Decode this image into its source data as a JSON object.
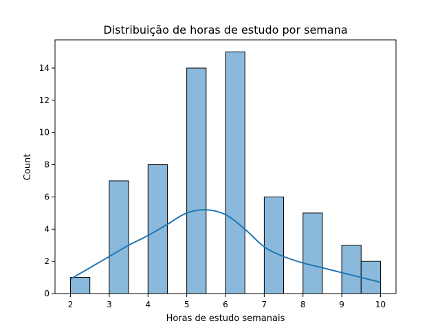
{
  "chart_data": {
    "type": "bar",
    "title": "Distribuição de horas de estudo por semana",
    "xlabel": "Horas de estudo semanais",
    "ylabel": "Count",
    "xlim": [
      1.6,
      10.4
    ],
    "ylim": [
      0,
      15.75
    ],
    "x_ticks": [
      2,
      3,
      4,
      5,
      6,
      7,
      8,
      9,
      10
    ],
    "y_ticks": [
      0,
      2,
      4,
      6,
      8,
      10,
      12,
      14
    ],
    "bins": [
      {
        "start": 2.0,
        "end": 2.5,
        "count": 1
      },
      {
        "start": 3.0,
        "end": 3.5,
        "count": 7
      },
      {
        "start": 4.0,
        "end": 4.5,
        "count": 8
      },
      {
        "start": 5.0,
        "end": 5.5,
        "count": 14
      },
      {
        "start": 6.0,
        "end": 6.5,
        "count": 15
      },
      {
        "start": 7.0,
        "end": 7.5,
        "count": 6
      },
      {
        "start": 8.0,
        "end": 8.5,
        "count": 5
      },
      {
        "start": 9.0,
        "end": 9.5,
        "count": 3
      },
      {
        "start": 9.5,
        "end": 10.0,
        "count": 2
      }
    ],
    "kde": {
      "x": [
        2.0,
        2.5,
        3.0,
        3.5,
        4.0,
        4.5,
        5.0,
        5.5,
        6.0,
        6.5,
        7.0,
        7.5,
        8.0,
        8.5,
        9.0,
        9.5,
        10.0
      ],
      "y": [
        0.9,
        1.6,
        2.3,
        3.0,
        3.6,
        4.3,
        5.0,
        5.2,
        4.9,
        4.0,
        2.9,
        2.3,
        1.9,
        1.6,
        1.3,
        1.0,
        0.7
      ]
    },
    "colors": {
      "bar_fill": "#8ab9db",
      "bar_edge": "#000000",
      "kde_line": "#1f77b4"
    },
    "grid": false,
    "legend": "none"
  }
}
